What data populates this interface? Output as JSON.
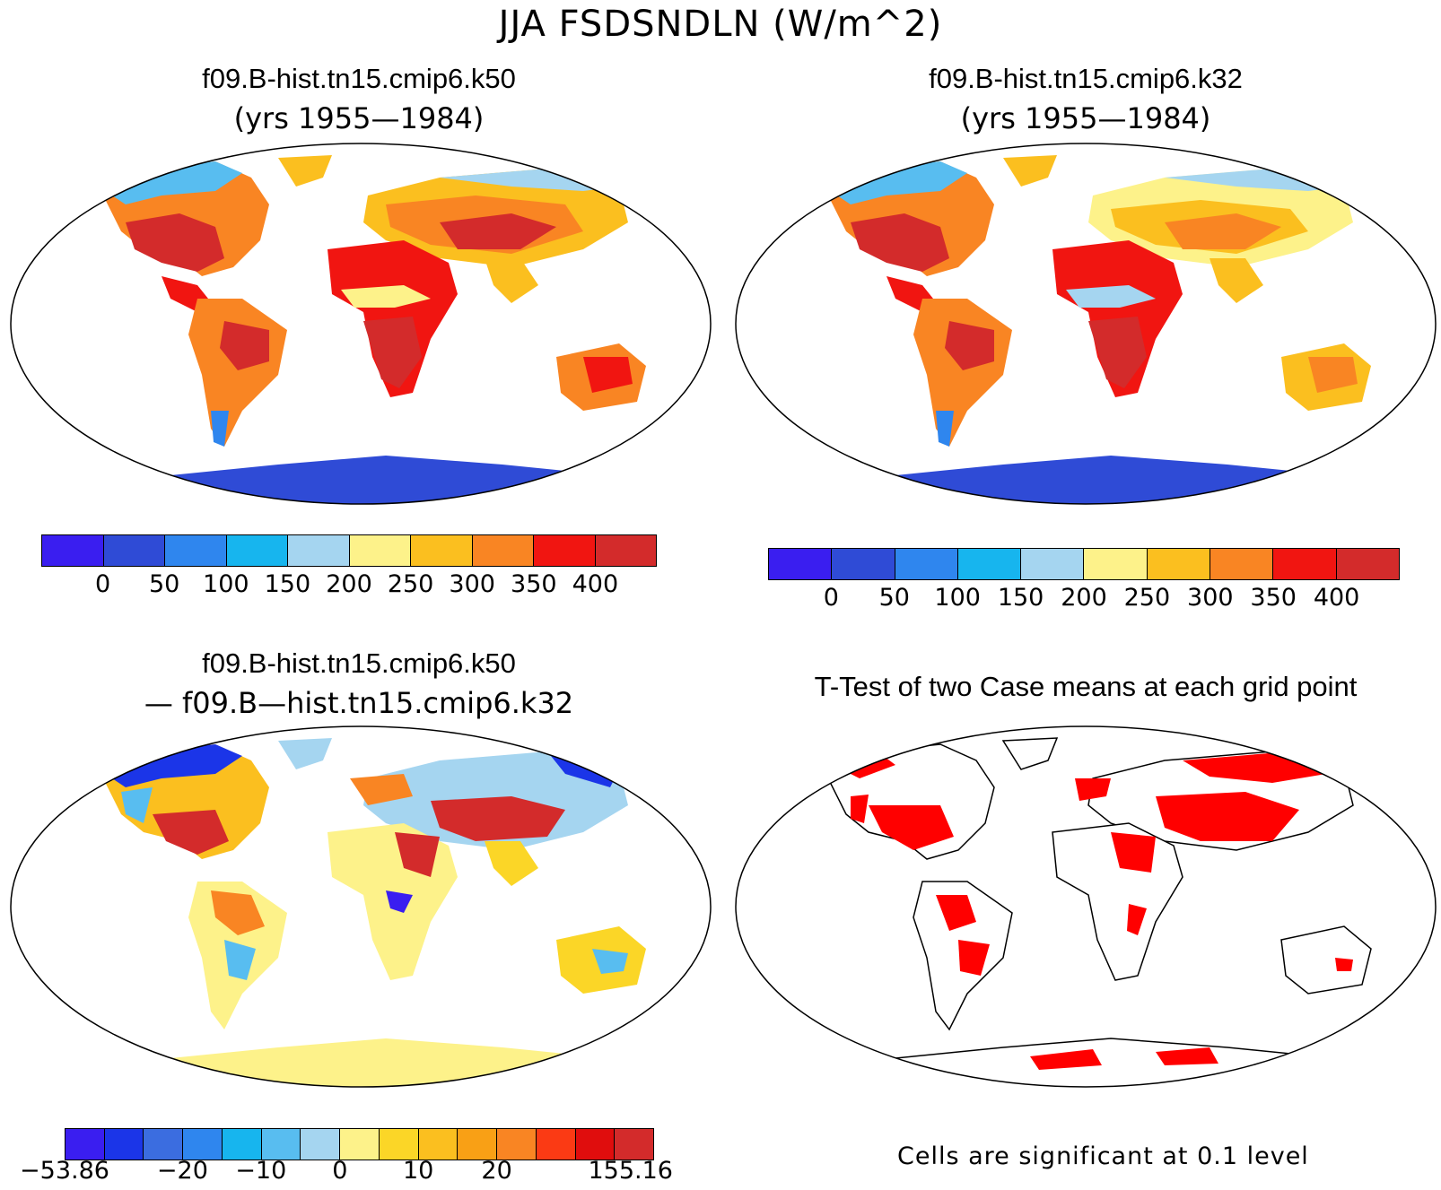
{
  "figure": {
    "title": "JJA FSDSNDLN (W/m^2)"
  },
  "panels": {
    "top_left": {
      "title": "f09.B-hist.tn15.cmip6.k50",
      "subtitle": "(yrs 1955—1984)"
    },
    "top_right": {
      "title": "f09.B-hist.tn15.cmip6.k32",
      "subtitle": "(yrs 1955—1984)"
    },
    "bottom_left": {
      "title": "f09.B-hist.tn15.cmip6.k50",
      "subtitle": "— f09.B—hist.tn15.cmip6.k32"
    },
    "bottom_right": {
      "title": "T-Test of two Case means at each grid point",
      "note": "Cells are significant at 0.1 level"
    }
  },
  "colorbars": {
    "absolute": {
      "colors": [
        "#3a1ef0",
        "#2f4bd6",
        "#2f86ee",
        "#17b5ee",
        "#a5d5f0",
        "#fdf28a",
        "#fbbf1f",
        "#f98523",
        "#f11511",
        "#d32b2b"
      ],
      "ticks": [
        "0",
        "50",
        "100",
        "150",
        "200",
        "250",
        "300",
        "350",
        "400"
      ]
    },
    "difference": {
      "colors": [
        "#3a1ef0",
        "#1b35e8",
        "#3b6de0",
        "#2f86ee",
        "#17b5ee",
        "#58bdf0",
        "#a5d5f0",
        "#fdf28a",
        "#fbd627",
        "#fbbf1f",
        "#f9a015",
        "#f98523",
        "#fb3a14",
        "#e00d0d",
        "#d32b2b"
      ],
      "ticks": [
        "−53.86",
        "−20",
        "−10",
        "0",
        "10",
        "20",
        "155.16"
      ]
    }
  },
  "map_colors": {
    "antarctica": "#2f4bd6",
    "ttest_significant": "#ff0000",
    "diff_antarctica": "#fdf28a"
  }
}
